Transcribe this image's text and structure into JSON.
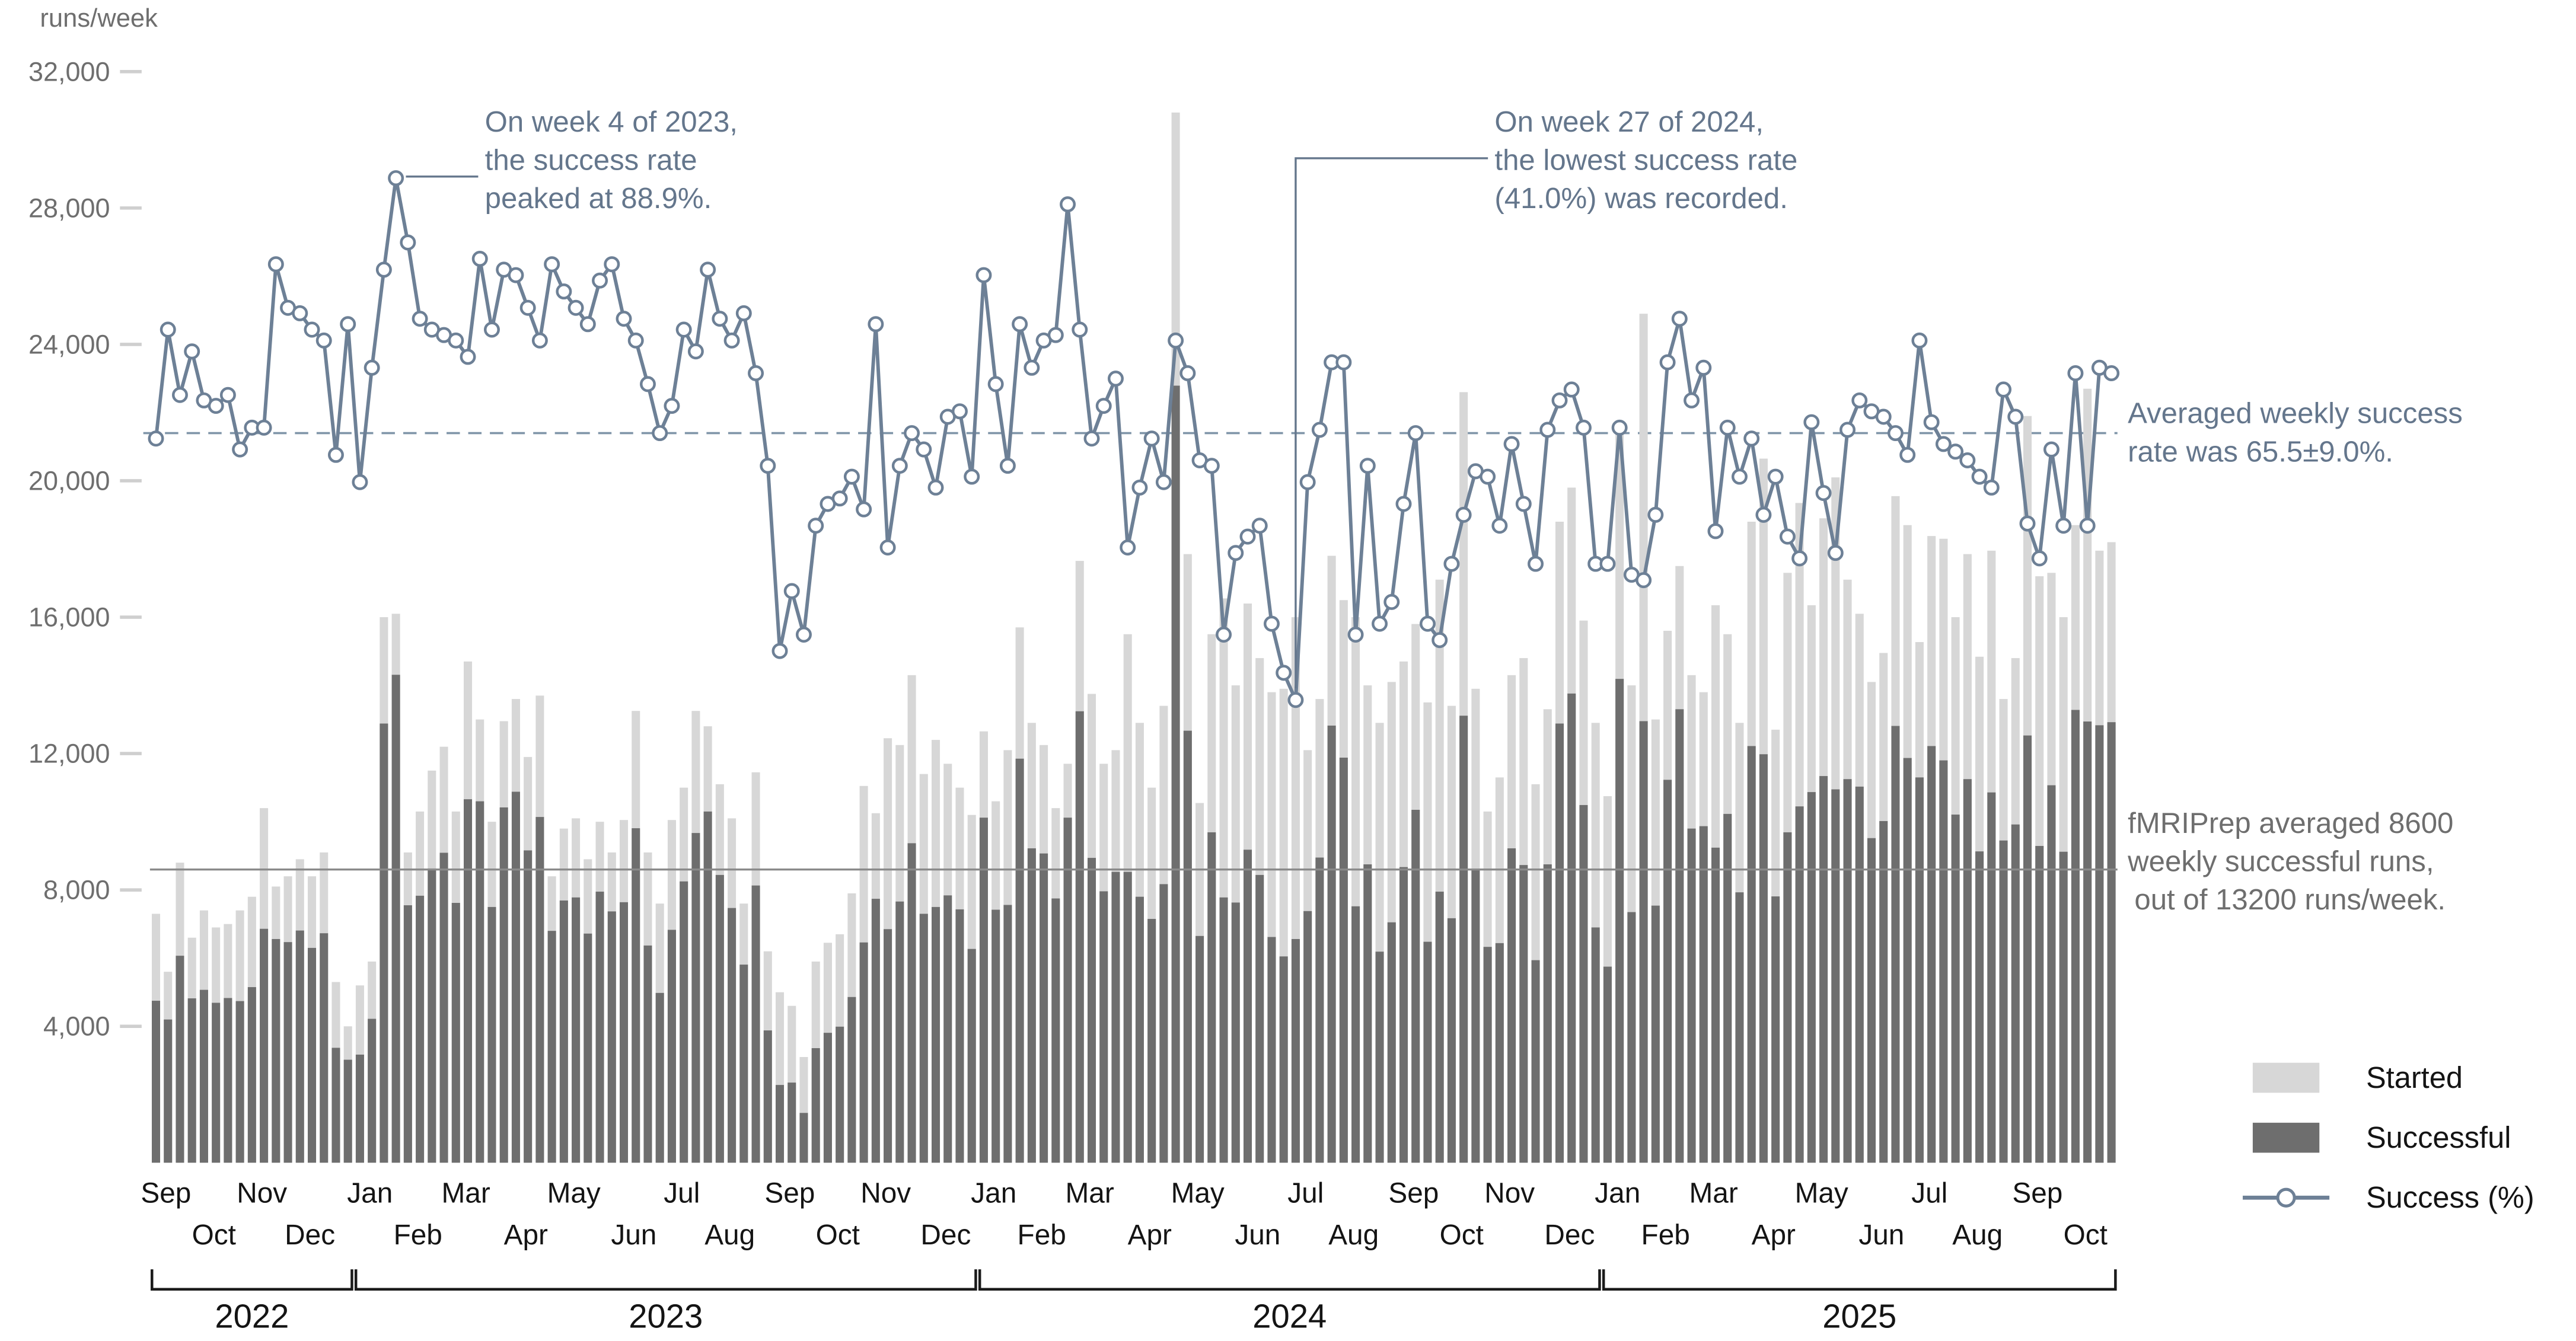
{
  "colors": {
    "started_bar": "#d7d7d7",
    "successful_bar": "#6e6e6e",
    "success_line": "#6d8096",
    "mean_rate_dash": "#8095a9",
    "mean_runs_line": "#8a8a8a",
    "annotation_slate_text": "#64768c",
    "annotation_gray_text": "#6e6e6e",
    "tick_text": "#6e6e6e",
    "axis_text": "#141414",
    "tick_dash": "#cfcfcf"
  },
  "y_axis": {
    "unit_label": "runs/week",
    "tick_labels": [
      "32,000",
      "28,000",
      "24,000",
      "20,000",
      "16,000",
      "12,000",
      "8,000",
      "4,000"
    ],
    "tick_values": [
      32000,
      28000,
      24000,
      20000,
      16000,
      12000,
      8000,
      4000
    ]
  },
  "x_axis": {
    "months": [
      {
        "label": "Sep",
        "week": 0,
        "row": "top"
      },
      {
        "label": "Oct",
        "week": 4,
        "row": "bottom"
      },
      {
        "label": "Nov",
        "week": 8,
        "row": "top"
      },
      {
        "label": "Dec",
        "week": 12,
        "row": "bottom"
      },
      {
        "label": "Jan",
        "week": 17,
        "row": "top"
      },
      {
        "label": "Feb",
        "week": 21,
        "row": "bottom"
      },
      {
        "label": "Mar",
        "week": 25,
        "row": "top"
      },
      {
        "label": "Apr",
        "week": 30,
        "row": "bottom"
      },
      {
        "label": "May",
        "week": 34,
        "row": "top"
      },
      {
        "label": "Jun",
        "week": 39,
        "row": "bottom"
      },
      {
        "label": "Jul",
        "week": 43,
        "row": "top"
      },
      {
        "label": "Aug",
        "week": 47,
        "row": "bottom"
      },
      {
        "label": "Sep",
        "week": 52,
        "row": "top"
      },
      {
        "label": "Oct",
        "week": 56,
        "row": "bottom"
      },
      {
        "label": "Nov",
        "week": 60,
        "row": "top"
      },
      {
        "label": "Dec",
        "week": 65,
        "row": "bottom"
      },
      {
        "label": "Jan",
        "week": 69,
        "row": "top"
      },
      {
        "label": "Feb",
        "week": 73,
        "row": "bottom"
      },
      {
        "label": "Mar",
        "week": 77,
        "row": "top"
      },
      {
        "label": "Apr",
        "week": 82,
        "row": "bottom"
      },
      {
        "label": "May",
        "week": 86,
        "row": "top"
      },
      {
        "label": "Jun",
        "week": 91,
        "row": "bottom"
      },
      {
        "label": "Jul",
        "week": 95,
        "row": "top"
      },
      {
        "label": "Aug",
        "week": 99,
        "row": "bottom"
      },
      {
        "label": "Sep",
        "week": 104,
        "row": "top"
      },
      {
        "label": "Oct",
        "week": 108,
        "row": "bottom"
      },
      {
        "label": "Nov",
        "week": 112,
        "row": "top"
      },
      {
        "label": "Dec",
        "week": 117,
        "row": "bottom"
      },
      {
        "label": "Jan",
        "week": 121,
        "row": "top"
      },
      {
        "label": "Feb",
        "week": 125,
        "row": "bottom"
      },
      {
        "label": "Mar",
        "week": 129,
        "row": "top"
      },
      {
        "label": "Apr",
        "week": 134,
        "row": "bottom"
      },
      {
        "label": "May",
        "week": 138,
        "row": "top"
      },
      {
        "label": "Jun",
        "week": 143,
        "row": "bottom"
      },
      {
        "label": "Jul",
        "week": 147,
        "row": "top"
      },
      {
        "label": "Aug",
        "week": 151,
        "row": "bottom"
      },
      {
        "label": "Sep",
        "week": 156,
        "row": "top"
      },
      {
        "label": "Oct",
        "week": 160,
        "row": "bottom"
      }
    ],
    "years": [
      {
        "label": "2022",
        "from_week": 0,
        "to_week": 16
      },
      {
        "label": "2023",
        "from_week": 17,
        "to_week": 68
      },
      {
        "label": "2024",
        "from_week": 69,
        "to_week": 120
      },
      {
        "label": "2025",
        "from_week": 121,
        "to_week": 163
      }
    ]
  },
  "legend": {
    "items": [
      {
        "label": "Started",
        "type": "swatch"
      },
      {
        "label": "Successful",
        "type": "swatch"
      },
      {
        "label": "Success (%)",
        "type": "line-marker"
      }
    ]
  },
  "annotations": {
    "peak": {
      "lines": [
        "On week 4 of 2023,",
        "the success rate",
        "peaked at 88.9%."
      ],
      "week_index": 20,
      "value_pct": 88.9
    },
    "low": {
      "lines": [
        "On week 27 of 2024,",
        "the lowest success rate",
        "(41.0%) was recorded."
      ],
      "week_index": 95,
      "value_pct": 41.0
    },
    "avg_rate": {
      "lines": [
        "Averaged weekly success",
        "rate was 65.5±9.0%."
      ],
      "mean_pct": 65.5,
      "sd_pct": 9.0
    },
    "avg_runs": {
      "lines": [
        "fMRIPrep averaged 8600",
        "weekly successful runs,",
        "out of 13200 runs/week."
      ],
      "mean_successful": 8600,
      "mean_started": 13200
    }
  },
  "chart_data": {
    "type": "bar",
    "subtype": "weekly bars with overlaid percent line",
    "weeks_start": "2022-W36",
    "weeks_end": "2025-W43",
    "n_weeks": 164,
    "ylim": [
      0,
      32000
    ],
    "mean_success_rate_pct": 65.5,
    "mean_successful_runs": 8600,
    "mean_started_runs": 13200,
    "series": [
      {
        "name": "Started",
        "type": "bar",
        "values": [
          7300,
          5600,
          8800,
          6600,
          7400,
          6900,
          7000,
          7400,
          7800,
          10400,
          8100,
          8400,
          8900,
          8400,
          9100,
          5300,
          4000,
          5200,
          5900,
          16000,
          16100,
          9100,
          10300,
          11500,
          12200,
          10300,
          14700,
          13000,
          10000,
          12950,
          13600,
          11900,
          13700,
          8400,
          9800,
          10100,
          8900,
          10000,
          9100,
          10050,
          13250,
          9100,
          7600,
          10050,
          11000,
          13250,
          12800,
          11100,
          10100,
          7600,
          11450,
          6200,
          5000,
          4600,
          3100,
          5900,
          6450,
          6700,
          7900,
          11050,
          10250,
          12450,
          12250,
          14300,
          11400,
          12400,
          11700,
          11000,
          10200,
          12650,
          10600,
          12100,
          15700,
          12900,
          12250,
          10400,
          11700,
          17650,
          13750,
          11700,
          12100,
          15500,
          12900,
          11000,
          13400,
          30800,
          17850,
          10550,
          15500,
          16550,
          14000,
          16400,
          14800,
          13800,
          13900,
          16000,
          12100,
          13600,
          17800,
          16500,
          16000,
          14000,
          12900,
          14100,
          14700,
          15800,
          13500,
          17100,
          13400,
          22600,
          13900,
          10300,
          11300,
          14300,
          14800,
          11100,
          13300,
          18800,
          19800,
          15900,
          12900,
          10750,
          21500,
          14000,
          24900,
          13000,
          15600,
          17500,
          14300,
          13800,
          16350,
          15500,
          12900,
          18800,
          20650,
          12700,
          17300,
          19350,
          16350,
          18900,
          20100,
          17100,
          16100,
          14100,
          14950,
          19550,
          18700,
          15270,
          18380,
          18300,
          16000,
          17850,
          14840,
          17950,
          13600,
          14800,
          21900,
          17200,
          17300,
          16000,
          18700,
          22700,
          17950,
          18200
        ]
      },
      {
        "name": "Successful",
        "type": "bar",
        "values": [
          4750,
          4200,
          6070,
          4820,
          5070,
          4690,
          4830,
          4740,
          5150,
          6860,
          6560,
          6470,
          6810,
          6300,
          6730,
          3370,
          3020,
          3170,
          4220,
          12880,
          14310,
          7550,
          7830,
          8630,
          9090,
          7620,
          10660,
          10600,
          7500,
          10420,
          10880,
          9160,
          10140,
          6800,
          7690,
          7780,
          6720,
          7950,
          7370,
          7640,
          9810,
          6370,
          4980,
          6830,
          8250,
          9670,
          10300,
          8440,
          7470,
          5810,
          8130,
          3880,
          2280,
          2350,
          1460,
          3360,
          3810,
          3990,
          4860,
          6460,
          7740,
          6850,
          7660,
          9370,
          7300,
          7500,
          7840,
          7430,
          6270,
          10120,
          7420,
          7560,
          11850,
          9220,
          9070,
          7750,
          10120,
          13240,
          8940,
          7960,
          8530,
          8530,
          7800,
          7150,
          8170,
          22790,
          12670,
          6650,
          9690,
          7780,
          7630,
          9180,
          8440,
          6620,
          6050,
          6560,
          7380,
          8950,
          12820,
          11880,
          7520,
          8750,
          6190,
          7050,
          8670,
          10350,
          6480,
          7950,
          7170,
          13110,
          8620,
          6330,
          6440,
          9220,
          8730,
          5940,
          8750,
          12880,
          13760,
          10490,
          6900,
          5750,
          14190,
          7350,
          12950,
          7540,
          11230,
          13300,
          9800,
          9870,
          9240,
          10230,
          7930,
          12220,
          11980,
          7810,
          9690,
          10450,
          10870,
          11340,
          10950,
          11250,
          11030,
          9520,
          10020,
          12810,
          11870,
          11300,
          12220,
          11800,
          10210,
          11250,
          9130,
          10860,
          9450,
          9920,
          12530,
          9290,
          11070,
          9120,
          13280,
          12940,
          12830,
          12920
        ]
      },
      {
        "name": "Success (%)",
        "type": "line",
        "values": [
          65,
          75,
          69,
          73,
          68.5,
          68,
          69,
          64,
          66,
          66,
          81,
          77,
          76.5,
          75,
          74,
          63.5,
          75.5,
          61,
          71.5,
          80.5,
          88.9,
          83,
          76,
          75,
          74.5,
          74,
          72.5,
          81.5,
          75,
          80.5,
          80,
          77,
          74,
          81,
          78.5,
          77,
          75.5,
          79.5,
          81,
          76,
          74,
          70,
          65.5,
          68,
          75,
          73,
          80.5,
          76,
          74,
          76.5,
          71,
          62.5,
          45.5,
          51,
          47,
          57,
          59,
          59.5,
          61.5,
          58.5,
          75.5,
          55,
          62.5,
          65.5,
          64,
          60.5,
          67,
          67.5,
          61.5,
          80,
          70,
          62.5,
          75.5,
          71.5,
          74,
          74.5,
          86.5,
          75,
          65,
          68,
          70.5,
          55,
          60.5,
          65,
          61,
          74,
          71,
          63,
          62.5,
          47,
          54.5,
          56,
          57,
          48,
          43.5,
          41,
          61,
          65.8,
          72,
          72,
          47,
          62.5,
          48,
          50,
          59,
          65.5,
          48,
          46.5,
          53.5,
          58,
          62,
          61.5,
          57,
          64.5,
          59,
          53.5,
          65.8,
          68.5,
          69.5,
          66,
          53.5,
          53.5,
          66,
          52.5,
          52,
          58,
          72,
          76,
          68.5,
          71.5,
          56.5,
          66,
          61.5,
          65,
          58,
          61.5,
          56,
          54,
          66.5,
          60,
          54.5,
          65.8,
          68.5,
          67.5,
          67,
          65.5,
          63.5,
          74,
          66.5,
          64.5,
          63.8,
          63,
          61.5,
          60.5,
          69.5,
          67,
          57.2,
          54,
          64,
          57,
          71,
          57,
          71.5,
          71
        ]
      }
    ]
  }
}
